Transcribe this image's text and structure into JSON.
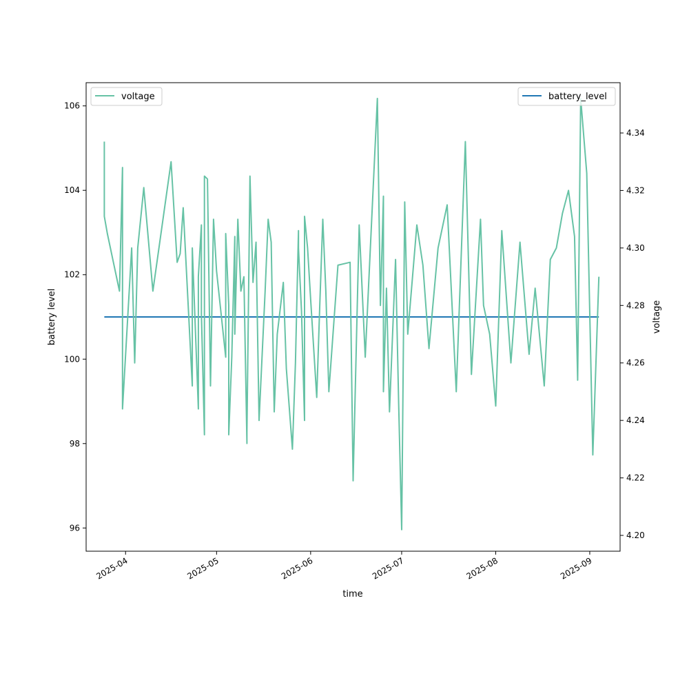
{
  "chart_data": {
    "type": "line",
    "xlabel": "time",
    "ylabel_left": "battery level",
    "ylabel_right": "voltage",
    "x_ticks": [
      "2025-04",
      "2025-05",
      "2025-06",
      "2025-07",
      "2025-08",
      "2025-09"
    ],
    "x_range": [
      "2025-03-19",
      "2025-09-11"
    ],
    "y_left": {
      "range": [
        95.45,
        106.55
      ],
      "ticks": [
        96,
        98,
        100,
        102,
        104,
        106
      ]
    },
    "y_right": {
      "range": [
        4.1945,
        4.3575
      ],
      "ticks": [
        4.2,
        4.22,
        4.24,
        4.26,
        4.28,
        4.3,
        4.32,
        4.34
      ]
    },
    "colors": {
      "voltage": "#66c2a5",
      "battery_level": "#1f77b4"
    },
    "legend_left": {
      "label": "voltage",
      "position": "upper-left"
    },
    "legend_right": {
      "label": "battery_level",
      "position": "upper-right"
    },
    "series": [
      {
        "name": "battery_level",
        "axis": "left",
        "x": [
          "2025-03-25",
          "2025-09-04"
        ],
        "y": [
          101,
          101
        ]
      },
      {
        "name": "voltage",
        "axis": "right",
        "x": [
          "2025-03-25",
          "2025-03-25",
          "2025-03-26",
          "2025-03-30",
          "2025-03-31",
          "2025-03-31",
          "2025-04-03",
          "2025-04-04",
          "2025-04-05",
          "2025-04-07",
          "2025-04-10",
          "2025-04-16",
          "2025-04-18",
          "2025-04-19",
          "2025-04-20",
          "2025-04-23",
          "2025-04-23",
          "2025-04-24",
          "2025-04-25",
          "2025-04-25",
          "2025-04-26",
          "2025-04-26",
          "2025-04-27",
          "2025-04-27",
          "2025-04-28",
          "2025-04-29",
          "2025-04-30",
          "2025-05-01",
          "2025-05-04",
          "2025-05-04",
          "2025-05-05",
          "2025-05-05",
          "2025-05-06",
          "2025-05-07",
          "2025-05-07",
          "2025-05-08",
          "2025-05-09",
          "2025-05-10",
          "2025-05-11",
          "2025-05-11",
          "2025-05-12",
          "2025-05-13",
          "2025-05-14",
          "2025-05-15",
          "2025-05-17",
          "2025-05-18",
          "2025-05-19",
          "2025-05-20",
          "2025-05-21",
          "2025-05-23",
          "2025-05-24",
          "2025-05-26",
          "2025-05-27",
          "2025-05-28",
          "2025-05-28",
          "2025-05-29",
          "2025-05-30",
          "2025-05-30",
          "2025-05-31",
          "2025-06-01",
          "2025-06-03",
          "2025-06-04",
          "2025-06-05",
          "2025-06-06",
          "2025-06-07",
          "2025-06-10",
          "2025-06-14",
          "2025-06-15",
          "2025-06-17",
          "2025-06-19",
          "2025-06-23",
          "2025-06-24",
          "2025-06-25",
          "2025-06-25",
          "2025-06-26",
          "2025-06-27",
          "2025-06-29",
          "2025-06-30",
          "2025-07-01",
          "2025-07-02",
          "2025-07-03",
          "2025-07-06",
          "2025-07-08",
          "2025-07-10",
          "2025-07-13",
          "2025-07-16",
          "2025-07-19",
          "2025-07-22",
          "2025-07-24",
          "2025-07-27",
          "2025-07-28",
          "2025-07-30",
          "2025-08-01",
          "2025-08-03",
          "2025-08-06",
          "2025-08-09",
          "2025-08-12",
          "2025-08-14",
          "2025-08-17",
          "2025-08-19",
          "2025-08-21",
          "2025-08-23",
          "2025-08-25",
          "2025-08-27",
          "2025-08-28",
          "2025-08-29",
          "2025-08-31",
          "2025-09-02",
          "2025-09-04"
        ],
        "y": [
          4.337,
          4.311,
          4.305,
          4.285,
          4.328,
          4.244,
          4.3,
          4.26,
          4.3,
          4.321,
          4.285,
          4.33,
          4.295,
          4.298,
          4.314,
          4.252,
          4.3,
          4.272,
          4.244,
          4.29,
          4.308,
          4.277,
          4.235,
          4.325,
          4.324,
          4.252,
          4.31,
          4.292,
          4.262,
          4.305,
          4.28,
          4.235,
          4.262,
          4.304,
          4.27,
          4.31,
          4.285,
          4.29,
          4.232,
          4.236,
          4.325,
          4.288,
          4.302,
          4.24,
          4.285,
          4.31,
          4.302,
          4.243,
          4.27,
          4.288,
          4.258,
          4.23,
          4.26,
          4.306,
          4.3,
          4.278,
          4.24,
          4.311,
          4.3,
          4.282,
          4.248,
          4.28,
          4.31,
          4.285,
          4.25,
          4.294,
          4.295,
          4.219,
          4.308,
          4.262,
          4.352,
          4.28,
          4.318,
          4.25,
          4.286,
          4.243,
          4.296,
          4.246,
          4.202,
          4.316,
          4.27,
          4.308,
          4.294,
          4.265,
          4.3,
          4.315,
          4.25,
          4.337,
          4.256,
          4.31,
          4.28,
          4.27,
          4.245,
          4.306,
          4.26,
          4.302,
          4.263,
          4.286,
          4.252,
          4.296,
          4.3,
          4.312,
          4.32,
          4.304,
          4.254,
          4.352,
          4.326,
          4.228,
          4.29
        ]
      }
    ]
  }
}
